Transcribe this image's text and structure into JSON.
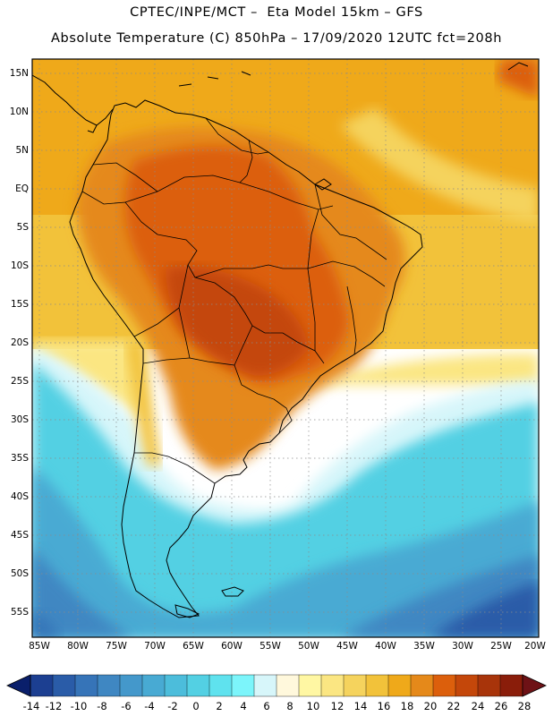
{
  "header": {
    "line1": "CPTEC/INPE/MCT –  Eta Model 15km – GFS",
    "line2": "Absolute Temperature (C) 850hPa – 17/09/2020 12UTC fct=208h"
  },
  "map": {
    "region": "South America",
    "lat_labels": [
      "15N",
      "10N",
      "5N",
      "EQ",
      "5S",
      "10S",
      "15S",
      "20S",
      "25S",
      "30S",
      "35S",
      "40S",
      "45S",
      "50S",
      "55S"
    ],
    "lon_labels": [
      "85W",
      "80W",
      "75W",
      "70W",
      "65W",
      "60W",
      "55W",
      "50W",
      "45W",
      "40W",
      "35W",
      "30W",
      "25W",
      "20W"
    ]
  },
  "colorbar": {
    "labels": [
      "-14",
      "-12",
      "-10",
      "-8",
      "-6",
      "-4",
      "-2",
      "0",
      "2",
      "4",
      "6",
      "8",
      "10",
      "12",
      "14",
      "16",
      "18",
      "20",
      "22",
      "24",
      "26",
      "28"
    ],
    "colors": [
      "#0a1f6b",
      "#1c3f91",
      "#2a5ca8",
      "#3674b8",
      "#3f87c2",
      "#4498cb",
      "#48aad3",
      "#4cbddb",
      "#53d0e3",
      "#5fe2ee",
      "#7cf5fb",
      "#d7f6fa",
      "#fff8dc",
      "#fff7a3",
      "#fbe682",
      "#f5d35d",
      "#f2c23a",
      "#efa91a",
      "#e5891a",
      "#dc5f0c",
      "#c4470a",
      "#a8340a",
      "#8a1d0a",
      "#6e1216"
    ]
  }
}
